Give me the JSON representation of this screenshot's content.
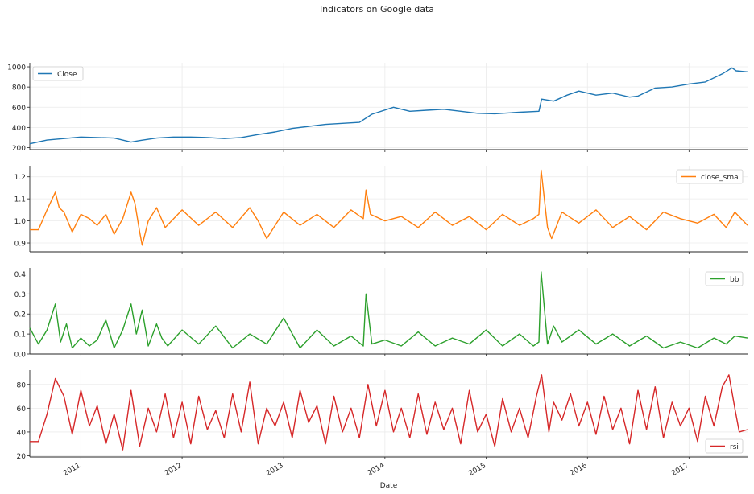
{
  "figure": {
    "title": "Indicators on Google data",
    "xlabel": "Date"
  },
  "chart_data": [
    {
      "type": "line",
      "title": "",
      "ylabel": "",
      "xlabel": "",
      "ylim": [
        180,
        1040
      ],
      "yticks": [
        200,
        400,
        600,
        800,
        1000
      ],
      "xlim": [
        "2010-07-01",
        "2017-07-31"
      ],
      "grid": true,
      "legend_placement": "upper-left",
      "series": [
        {
          "name": "Close",
          "color": "#1f77b4",
          "x": [
            "2010-07-01",
            "2010-09-01",
            "2010-11-01",
            "2011-01-01",
            "2011-03-01",
            "2011-05-01",
            "2011-07-01",
            "2011-08-01",
            "2011-10-01",
            "2011-12-01",
            "2012-02-01",
            "2012-04-01",
            "2012-06-01",
            "2012-08-01",
            "2012-10-01",
            "2012-12-01",
            "2013-02-01",
            "2013-04-01",
            "2013-06-01",
            "2013-08-01",
            "2013-10-01",
            "2013-11-15",
            "2014-02-01",
            "2014-04-01",
            "2014-06-01",
            "2014-08-01",
            "2014-10-01",
            "2014-12-01",
            "2015-02-01",
            "2015-05-01",
            "2015-07-10",
            "2015-07-20",
            "2015-09-01",
            "2015-10-20",
            "2015-12-01",
            "2016-02-01",
            "2016-04-01",
            "2016-06-01",
            "2016-07-01",
            "2016-09-01",
            "2016-11-01",
            "2017-01-01",
            "2017-03-01",
            "2017-05-01",
            "2017-06-05",
            "2017-06-20",
            "2017-07-31"
          ],
          "y": [
            238,
            275,
            290,
            305,
            300,
            295,
            255,
            270,
            295,
            305,
            305,
            300,
            290,
            300,
            330,
            355,
            390,
            410,
            430,
            440,
            450,
            530,
            600,
            560,
            570,
            580,
            560,
            540,
            535,
            550,
            560,
            680,
            660,
            720,
            760,
            720,
            740,
            700,
            710,
            790,
            800,
            830,
            850,
            930,
            990,
            960,
            950
          ]
        }
      ]
    },
    {
      "type": "line",
      "title": "",
      "ylim": [
        0.86,
        1.25
      ],
      "yticks": [
        0.9,
        1.0,
        1.1,
        1.2
      ],
      "xlim": [
        "2010-07-01",
        "2017-07-31"
      ],
      "grid": true,
      "legend_placement": "upper-right",
      "series": [
        {
          "name": "close_sma",
          "color": "#ff7f0e",
          "x": [
            "2010-07-01",
            "2010-08-01",
            "2010-09-01",
            "2010-10-01",
            "2010-10-15",
            "2010-11-01",
            "2010-12-01",
            "2011-01-01",
            "2011-02-01",
            "2011-03-01",
            "2011-04-01",
            "2011-05-01",
            "2011-06-01",
            "2011-07-01",
            "2011-07-15",
            "2011-08-01",
            "2011-08-10",
            "2011-09-01",
            "2011-10-01",
            "2011-11-01",
            "2012-01-01",
            "2012-03-01",
            "2012-05-01",
            "2012-07-01",
            "2012-09-01",
            "2012-10-01",
            "2012-11-01",
            "2013-01-01",
            "2013-03-01",
            "2013-05-01",
            "2013-07-01",
            "2013-09-01",
            "2013-10-15",
            "2013-10-25",
            "2013-11-10",
            "2014-01-01",
            "2014-03-01",
            "2014-05-01",
            "2014-07-01",
            "2014-09-01",
            "2014-11-01",
            "2015-01-01",
            "2015-03-01",
            "2015-05-01",
            "2015-06-20",
            "2015-07-10",
            "2015-07-18",
            "2015-08-10",
            "2015-08-25",
            "2015-10-01",
            "2015-12-01",
            "2016-02-01",
            "2016-04-01",
            "2016-06-01",
            "2016-08-01",
            "2016-10-01",
            "2016-12-01",
            "2017-02-01",
            "2017-04-01",
            "2017-05-15",
            "2017-06-15",
            "2017-07-31"
          ],
          "y": [
            0.96,
            0.96,
            1.05,
            1.13,
            1.06,
            1.04,
            0.95,
            1.03,
            1.01,
            0.98,
            1.03,
            0.94,
            1.01,
            1.13,
            1.08,
            0.95,
            0.89,
            1.0,
            1.06,
            0.97,
            1.05,
            0.98,
            1.04,
            0.97,
            1.06,
            1.0,
            0.92,
            1.04,
            0.98,
            1.03,
            0.97,
            1.05,
            1.01,
            1.14,
            1.03,
            1.0,
            1.02,
            0.97,
            1.04,
            0.98,
            1.02,
            0.96,
            1.03,
            0.98,
            1.01,
            1.03,
            1.23,
            0.97,
            0.92,
            1.04,
            0.99,
            1.05,
            0.97,
            1.02,
            0.96,
            1.04,
            1.01,
            0.99,
            1.03,
            0.97,
            1.04,
            0.98
          ]
        }
      ]
    },
    {
      "type": "line",
      "title": "",
      "ylim": [
        0.0,
        0.43
      ],
      "yticks": [
        0.0,
        0.1,
        0.2,
        0.3,
        0.4
      ],
      "xlim": [
        "2010-07-01",
        "2017-07-31"
      ],
      "grid": true,
      "legend_placement": "upper-right",
      "series": [
        {
          "name": "bb",
          "color": "#2ca02c",
          "x": [
            "2010-07-01",
            "2010-08-01",
            "2010-09-01",
            "2010-10-01",
            "2010-10-20",
            "2010-11-10",
            "2010-12-01",
            "2011-01-01",
            "2011-02-01",
            "2011-03-01",
            "2011-04-01",
            "2011-05-01",
            "2011-06-01",
            "2011-07-01",
            "2011-07-20",
            "2011-08-10",
            "2011-09-01",
            "2011-10-01",
            "2011-10-20",
            "2011-11-10",
            "2012-01-01",
            "2012-03-01",
            "2012-05-01",
            "2012-07-01",
            "2012-09-01",
            "2012-11-01",
            "2013-01-01",
            "2013-03-01",
            "2013-05-01",
            "2013-07-01",
            "2013-09-01",
            "2013-10-15",
            "2013-10-25",
            "2013-11-15",
            "2014-01-01",
            "2014-03-01",
            "2014-05-01",
            "2014-07-01",
            "2014-09-01",
            "2014-11-01",
            "2015-01-01",
            "2015-03-01",
            "2015-05-01",
            "2015-06-20",
            "2015-07-10",
            "2015-07-18",
            "2015-08-10",
            "2015-09-01",
            "2015-10-01",
            "2015-12-01",
            "2016-02-01",
            "2016-04-01",
            "2016-06-01",
            "2016-08-01",
            "2016-10-01",
            "2016-12-01",
            "2017-02-01",
            "2017-04-01",
            "2017-05-15",
            "2017-06-15",
            "2017-07-31"
          ],
          "y": [
            0.13,
            0.05,
            0.12,
            0.25,
            0.06,
            0.15,
            0.03,
            0.08,
            0.04,
            0.07,
            0.17,
            0.03,
            0.12,
            0.25,
            0.1,
            0.22,
            0.04,
            0.15,
            0.08,
            0.04,
            0.12,
            0.05,
            0.14,
            0.03,
            0.1,
            0.05,
            0.18,
            0.03,
            0.12,
            0.04,
            0.09,
            0.04,
            0.3,
            0.05,
            0.07,
            0.04,
            0.11,
            0.04,
            0.08,
            0.05,
            0.12,
            0.04,
            0.1,
            0.04,
            0.06,
            0.41,
            0.05,
            0.14,
            0.06,
            0.12,
            0.05,
            0.1,
            0.04,
            0.09,
            0.03,
            0.06,
            0.03,
            0.08,
            0.05,
            0.09,
            0.08
          ]
        }
      ]
    },
    {
      "type": "line",
      "title": "",
      "ylim": [
        19,
        92
      ],
      "yticks": [
        20,
        40,
        60,
        80
      ],
      "xlim": [
        "2010-07-01",
        "2017-07-31"
      ],
      "grid": true,
      "legend_placement": "lower-right",
      "xticks": [
        "2011",
        "2012",
        "2013",
        "2014",
        "2015",
        "2016",
        "2017"
      ],
      "series": [
        {
          "name": "rsi",
          "color": "#d62728",
          "x": [
            "2010-07-01",
            "2010-08-01",
            "2010-09-01",
            "2010-10-01",
            "2010-11-01",
            "2010-12-01",
            "2011-01-01",
            "2011-02-01",
            "2011-03-01",
            "2011-04-01",
            "2011-05-01",
            "2011-06-01",
            "2011-07-01",
            "2011-08-01",
            "2011-09-01",
            "2011-10-01",
            "2011-11-01",
            "2011-12-01",
            "2012-01-01",
            "2012-02-01",
            "2012-03-01",
            "2012-04-01",
            "2012-05-01",
            "2012-06-01",
            "2012-07-01",
            "2012-08-01",
            "2012-09-01",
            "2012-10-01",
            "2012-11-01",
            "2012-12-01",
            "2013-01-01",
            "2013-02-01",
            "2013-03-01",
            "2013-04-01",
            "2013-05-01",
            "2013-06-01",
            "2013-07-01",
            "2013-08-01",
            "2013-09-01",
            "2013-10-01",
            "2013-11-01",
            "2013-12-01",
            "2014-01-01",
            "2014-02-01",
            "2014-03-01",
            "2014-04-01",
            "2014-05-01",
            "2014-06-01",
            "2014-07-01",
            "2014-08-01",
            "2014-09-01",
            "2014-10-01",
            "2014-11-01",
            "2014-12-01",
            "2015-01-01",
            "2015-02-01",
            "2015-03-01",
            "2015-04-01",
            "2015-05-01",
            "2015-06-01",
            "2015-07-01",
            "2015-07-20",
            "2015-08-15",
            "2015-09-01",
            "2015-10-01",
            "2015-11-01",
            "2015-12-01",
            "2016-01-01",
            "2016-02-01",
            "2016-03-01",
            "2016-04-01",
            "2016-05-01",
            "2016-06-01",
            "2016-07-01",
            "2016-08-01",
            "2016-09-01",
            "2016-10-01",
            "2016-11-01",
            "2016-12-01",
            "2017-01-01",
            "2017-02-01",
            "2017-03-01",
            "2017-04-01",
            "2017-05-01",
            "2017-05-25",
            "2017-06-15",
            "2017-07-01",
            "2017-07-31"
          ],
          "y": [
            32,
            32,
            55,
            85,
            70,
            38,
            75,
            45,
            62,
            30,
            55,
            25,
            75,
            28,
            60,
            40,
            72,
            35,
            65,
            30,
            70,
            42,
            58,
            35,
            72,
            40,
            82,
            30,
            60,
            45,
            65,
            35,
            75,
            48,
            62,
            30,
            70,
            40,
            60,
            35,
            80,
            45,
            75,
            40,
            60,
            35,
            72,
            38,
            65,
            42,
            60,
            30,
            75,
            40,
            55,
            28,
            68,
            40,
            60,
            35,
            70,
            88,
            40,
            65,
            50,
            72,
            45,
            65,
            38,
            70,
            42,
            60,
            30,
            75,
            42,
            78,
            35,
            65,
            45,
            60,
            32,
            70,
            45,
            78,
            88,
            60,
            40,
            42
          ]
        }
      ]
    }
  ]
}
